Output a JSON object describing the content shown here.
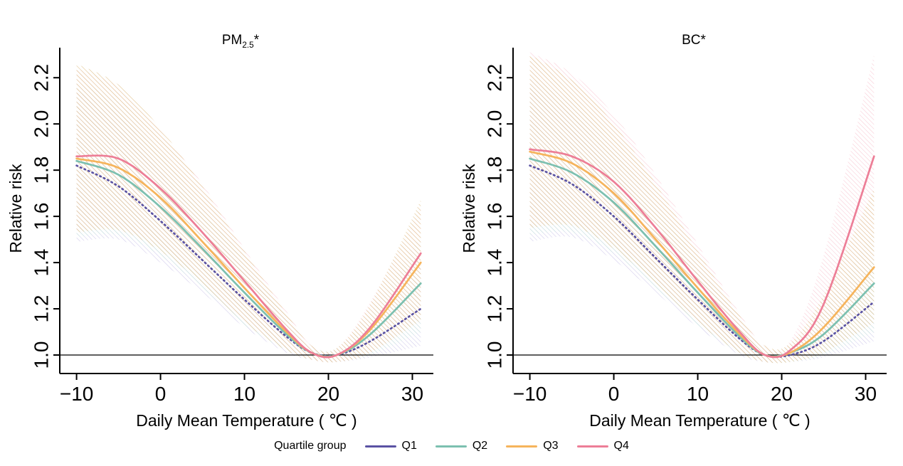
{
  "legend": {
    "title": "Quartile group",
    "position": "bottom",
    "items": [
      {
        "label": "Q1",
        "color": "#5a52a3"
      },
      {
        "label": "Q2",
        "color": "#7cc0b0"
      },
      {
        "label": "Q3",
        "color": "#f6b45c"
      },
      {
        "label": "Q4",
        "color": "#ed7e97"
      }
    ]
  },
  "chart_data": [
    {
      "type": "line",
      "title": {
        "main": "PM",
        "sub": "2.5",
        "suffix": "*"
      },
      "xlabel": "Daily Mean Temperature ( ℃ )",
      "ylabel": "Relative risk",
      "xlim": [
        -12,
        32.5
      ],
      "ylim": [
        0.92,
        2.33
      ],
      "grid": false,
      "ref_line": 1.0,
      "xticks": {
        "values": [
          -10,
          0,
          10,
          20,
          30
        ],
        "labels": [
          "−10",
          "0",
          "10",
          "20",
          "30"
        ]
      },
      "yticks": {
        "values": [
          1.0,
          1.2,
          1.4,
          1.6,
          1.8,
          2.0,
          2.2
        ],
        "labels": [
          "1.0",
          "1.2",
          "1.4",
          "1.6",
          "1.8",
          "2.0",
          "2.2"
        ]
      },
      "x": [
        -10,
        -5,
        0,
        5,
        10,
        15,
        18,
        21,
        25,
        31
      ],
      "series": [
        {
          "name": "Q1",
          "color": "#5a52a3",
          "band_color": "#cfc9ea",
          "style": "dotted",
          "values": [
            1.82,
            1.73,
            1.58,
            1.41,
            1.24,
            1.08,
            1.01,
            1.0,
            1.06,
            1.2
          ],
          "lower": [
            1.49,
            1.5,
            1.4,
            1.27,
            1.12,
            1.01,
            0.98,
            0.97,
            0.99,
            1.04
          ],
          "upper": [
            2.14,
            2.05,
            1.8,
            1.57,
            1.37,
            1.15,
            1.03,
            1.02,
            1.13,
            1.38
          ]
        },
        {
          "name": "Q2",
          "color": "#7cc0b0",
          "band_color": "#c8e6de",
          "style": "solid",
          "values": [
            1.84,
            1.78,
            1.64,
            1.46,
            1.27,
            1.09,
            1.01,
            1.0,
            1.09,
            1.31
          ],
          "lower": [
            1.51,
            1.52,
            1.43,
            1.29,
            1.13,
            1.02,
            0.98,
            0.97,
            1.0,
            1.1
          ],
          "upper": [
            2.18,
            2.1,
            1.88,
            1.64,
            1.41,
            1.17,
            1.04,
            1.03,
            1.18,
            1.52
          ]
        },
        {
          "name": "Q3",
          "color": "#f6b45c",
          "band_color": "#dfc089",
          "style": "solid",
          "values": [
            1.85,
            1.81,
            1.68,
            1.49,
            1.29,
            1.1,
            1.01,
            1.0,
            1.11,
            1.4
          ],
          "lower": [
            1.53,
            1.54,
            1.45,
            1.31,
            1.14,
            1.02,
            0.98,
            0.97,
            1.01,
            1.15
          ],
          "upper": [
            2.26,
            2.17,
            1.98,
            1.73,
            1.45,
            1.18,
            1.04,
            1.03,
            1.22,
            1.67
          ]
        },
        {
          "name": "Q4",
          "color": "#ed7e97",
          "band_color": "#f7c9d4",
          "style": "solid",
          "values": [
            1.86,
            1.85,
            1.72,
            1.53,
            1.32,
            1.11,
            1.01,
            1.0,
            1.12,
            1.44
          ],
          "lower": [
            1.54,
            1.55,
            1.47,
            1.33,
            1.15,
            1.03,
            0.98,
            0.97,
            1.01,
            1.17
          ],
          "upper": [
            2.24,
            2.16,
            1.97,
            1.74,
            1.46,
            1.19,
            1.04,
            1.03,
            1.23,
            1.64
          ]
        }
      ]
    },
    {
      "type": "line",
      "title": {
        "main": "BC",
        "sub": "",
        "suffix": "*"
      },
      "xlabel": "Daily Mean Temperature ( ℃ )",
      "ylabel": "Relative risk",
      "xlim": [
        -12,
        32.5
      ],
      "ylim": [
        0.92,
        2.33
      ],
      "grid": false,
      "ref_line": 1.0,
      "xticks": {
        "values": [
          -10,
          0,
          10,
          20,
          30
        ],
        "labels": [
          "−10",
          "0",
          "10",
          "20",
          "30"
        ]
      },
      "yticks": {
        "values": [
          1.0,
          1.2,
          1.4,
          1.6,
          1.8,
          2.0,
          2.2
        ],
        "labels": [
          "1.0",
          "1.2",
          "1.4",
          "1.6",
          "1.8",
          "2.0",
          "2.2"
        ]
      },
      "x": [
        -10,
        -5,
        0,
        5,
        10,
        15,
        18,
        21,
        25,
        31
      ],
      "series": [
        {
          "name": "Q1",
          "color": "#5a52a3",
          "band_color": "#cfc9ea",
          "style": "dotted",
          "values": [
            1.82,
            1.74,
            1.6,
            1.42,
            1.24,
            1.07,
            1.0,
            1.0,
            1.06,
            1.23
          ],
          "lower": [
            1.49,
            1.51,
            1.41,
            1.27,
            1.12,
            1.0,
            0.97,
            0.97,
            0.99,
            1.06
          ],
          "upper": [
            2.16,
            2.04,
            1.82,
            1.58,
            1.37,
            1.14,
            1.03,
            1.03,
            1.14,
            1.42
          ]
        },
        {
          "name": "Q2",
          "color": "#7cc0b0",
          "band_color": "#c8e6de",
          "style": "solid",
          "values": [
            1.85,
            1.79,
            1.66,
            1.47,
            1.27,
            1.08,
            1.0,
            1.01,
            1.09,
            1.31
          ],
          "lower": [
            1.52,
            1.53,
            1.44,
            1.29,
            1.13,
            1.01,
            0.97,
            0.97,
            1.0,
            1.1
          ],
          "upper": [
            2.2,
            2.1,
            1.9,
            1.66,
            1.41,
            1.16,
            1.03,
            1.04,
            1.19,
            1.55
          ]
        },
        {
          "name": "Q3",
          "color": "#f6b45c",
          "band_color": "#dfc089",
          "style": "solid",
          "values": [
            1.88,
            1.83,
            1.7,
            1.5,
            1.29,
            1.09,
            1.0,
            1.01,
            1.12,
            1.38
          ],
          "lower": [
            1.55,
            1.56,
            1.46,
            1.31,
            1.14,
            1.01,
            0.97,
            0.97,
            1.01,
            1.14
          ],
          "upper": [
            2.3,
            2.19,
            2.0,
            1.74,
            1.45,
            1.17,
            1.04,
            1.05,
            1.26,
            1.72
          ]
        },
        {
          "name": "Q4",
          "color": "#ed7e97",
          "band_color": "#f7c9d4",
          "style": "solid",
          "values": [
            1.89,
            1.86,
            1.75,
            1.55,
            1.32,
            1.1,
            1.0,
            1.02,
            1.22,
            1.86
          ],
          "lower": [
            1.56,
            1.57,
            1.48,
            1.33,
            1.15,
            1.02,
            0.97,
            0.98,
            1.05,
            1.42
          ],
          "upper": [
            2.31,
            2.22,
            2.04,
            1.78,
            1.48,
            1.18,
            1.04,
            1.06,
            1.43,
            2.3
          ]
        }
      ]
    }
  ]
}
